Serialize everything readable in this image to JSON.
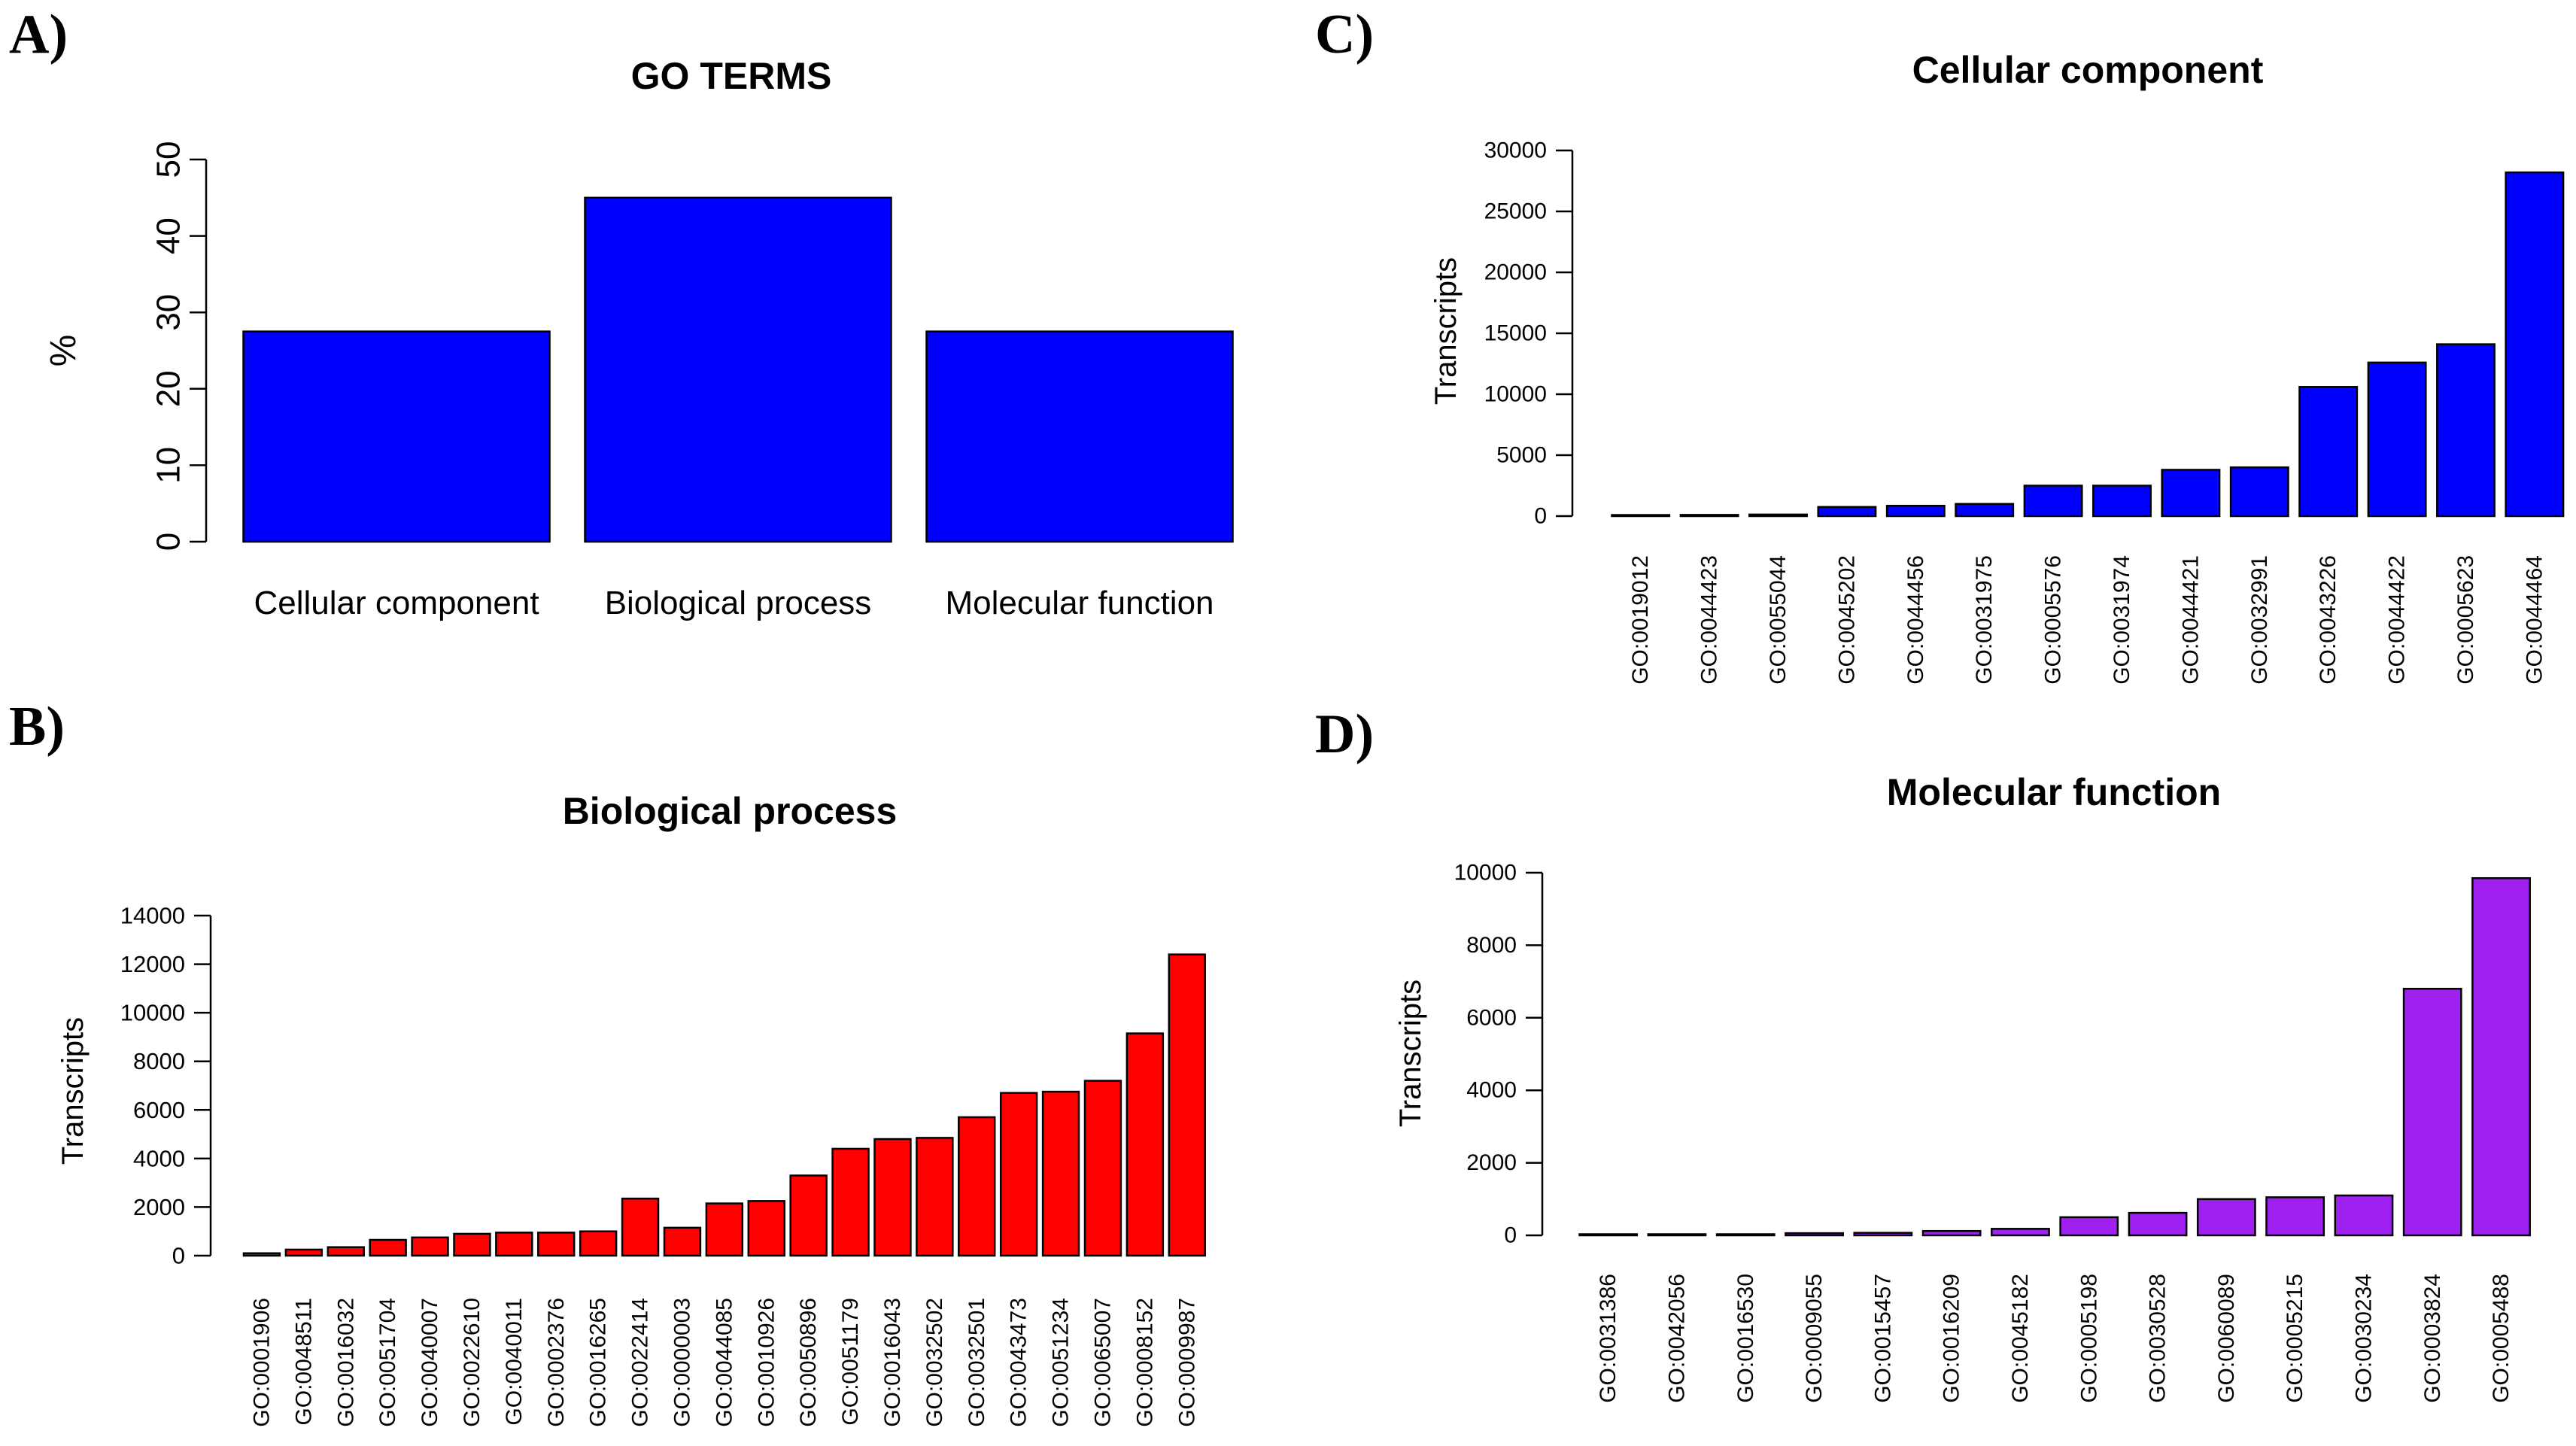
{
  "panels": [
    {
      "letter": "A)"
    },
    {
      "letter": "B)"
    },
    {
      "letter": "C)"
    },
    {
      "letter": "D)"
    }
  ],
  "chart_data": [
    {
      "id": "A",
      "type": "bar",
      "title": "GO TERMS",
      "xlabel": "",
      "ylabel": "%",
      "ylim": [
        0,
        50
      ],
      "yticks": [
        "0",
        "10",
        "20",
        "30",
        "40",
        "50"
      ],
      "ytick_values": [
        0,
        10,
        20,
        30,
        40,
        50
      ],
      "ytick_orientation": "vertical",
      "color": "#0000FF",
      "categories": [
        "Cellular component",
        "Biological process",
        "Molecular function"
      ],
      "values": [
        27.5,
        45,
        27.5
      ]
    },
    {
      "id": "B",
      "type": "bar",
      "title": "Biological process",
      "xlabel": "",
      "ylabel": "Transcripts",
      "ylim": [
        0,
        14000
      ],
      "yticks": [
        "0",
        "2000",
        "4000",
        "6000",
        "8000",
        "10000",
        "12000",
        "14000"
      ],
      "ytick_values": [
        0,
        2000,
        4000,
        6000,
        8000,
        10000,
        12000,
        14000
      ],
      "ytick_orientation": "horizontal",
      "color": "#FF0000",
      "categories": [
        "GO:0001906",
        "GO:0048511",
        "GO:0016032",
        "GO:0051704",
        "GO:0040007",
        "GO:0022610",
        "GO:0040011",
        "GO:0002376",
        "GO:0016265",
        "GO:0022414",
        "GO:0000003",
        "GO:0044085",
        "GO:0010926",
        "GO:0050896",
        "GO:0051179",
        "GO:0016043",
        "GO:0032502",
        "GO:0032501",
        "GO:0043473",
        "GO:0051234",
        "GO:0065007",
        "GO:0008152",
        "GO:0009987"
      ],
      "values": [
        100,
        250,
        350,
        650,
        750,
        900,
        950,
        950,
        1000,
        2350,
        1150,
        2150,
        2250,
        3300,
        4400,
        4800,
        4850,
        5700,
        6700,
        6750,
        7200,
        9150,
        12400
      ]
    },
    {
      "id": "C",
      "type": "bar",
      "title": "Cellular component",
      "xlabel": "",
      "ylabel": "Transcripts",
      "ylim": [
        0,
        30000
      ],
      "yticks": [
        "0",
        "5000",
        "10000",
        "15000",
        "20000",
        "25000",
        "30000"
      ],
      "ytick_values": [
        0,
        5000,
        10000,
        15000,
        20000,
        25000,
        30000
      ],
      "ytick_orientation": "horizontal",
      "color": "#0000FF",
      "categories": [
        "GO:0019012",
        "GO:0044423",
        "GO:0055044",
        "GO:0045202",
        "GO:0044456",
        "GO:0031975",
        "GO:0005576",
        "GO:0031974",
        "GO:0044421",
        "GO:0032991",
        "GO:0043226",
        "GO:0044422",
        "GO:0005623",
        "GO:0044464"
      ],
      "values": [
        80,
        100,
        130,
        750,
        850,
        1000,
        2500,
        2500,
        3800,
        4000,
        10600,
        12600,
        14100,
        28200
      ]
    },
    {
      "id": "D",
      "type": "bar",
      "title": "Molecular function",
      "xlabel": "",
      "ylabel": "Transcripts",
      "ylim": [
        0,
        10000
      ],
      "yticks": [
        "0",
        "2000",
        "4000",
        "6000",
        "8000",
        "10000"
      ],
      "ytick_values": [
        0,
        2000,
        4000,
        6000,
        8000,
        10000
      ],
      "ytick_orientation": "horizontal",
      "color": "#A020F0",
      "categories": [
        "GO:0031386",
        "GO:0042056",
        "GO:0016530",
        "GO:0009055",
        "GO:0015457",
        "GO:0016209",
        "GO:0045182",
        "GO:0005198",
        "GO:0030528",
        "GO:0060089",
        "GO:0005215",
        "GO:0030234",
        "GO:0003824",
        "GO:0005488"
      ],
      "values": [
        10,
        15,
        20,
        60,
        70,
        120,
        180,
        500,
        620,
        1000,
        1050,
        1100,
        6800,
        9850
      ]
    }
  ]
}
